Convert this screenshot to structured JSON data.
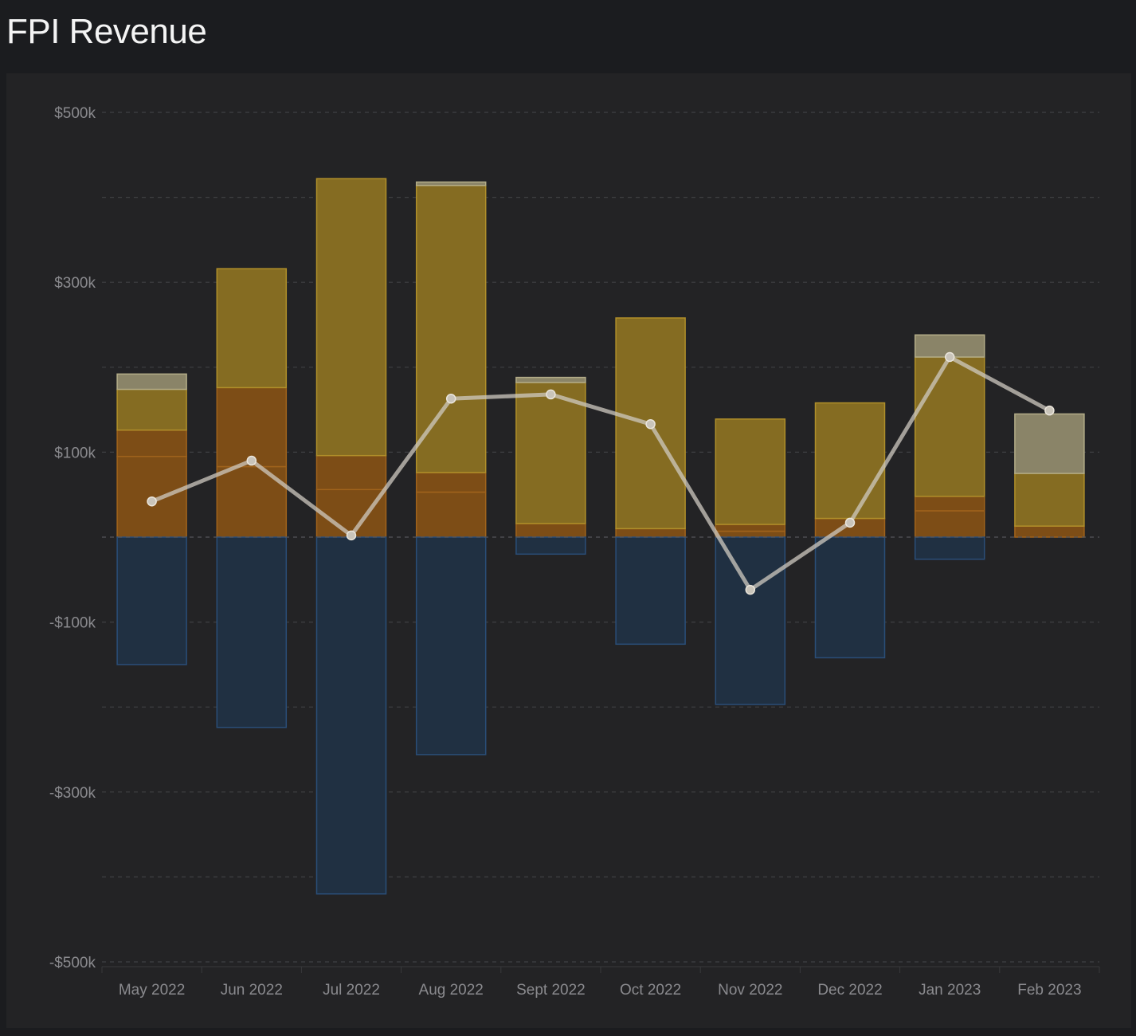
{
  "header": {
    "title": "FPI Revenue"
  },
  "chart_data": {
    "type": "bar",
    "title": "FPI Revenue",
    "categories": [
      "May 2022",
      "Jun 2022",
      "Jul 2022",
      "Aug 2022",
      "Sept 2022",
      "Oct 2022",
      "Nov 2022",
      "Dec 2022",
      "Jan 2023",
      "Feb 2023"
    ],
    "y_ticks": [
      "$500k",
      "$300k",
      "$100k",
      "-$100k",
      "-$300k",
      "-$500k"
    ],
    "ylim": [
      -500000,
      500000
    ],
    "grid": true,
    "series": [
      {
        "kind": "bar",
        "color": "#7d4d16",
        "edge": "#a0631c",
        "values": [
          95000,
          83000,
          56000,
          53000,
          16000,
          10000,
          7000,
          22000,
          31000,
          13000
        ]
      },
      {
        "kind": "bar",
        "color": "#7d4d16",
        "edge": "#a0631c",
        "values": [
          31000,
          93000,
          40000,
          23000,
          0,
          0,
          8000,
          0,
          17000,
          0
        ]
      },
      {
        "kind": "bar",
        "color": "#856c22",
        "edge": "#b08f2a",
        "values": [
          48000,
          140000,
          326000,
          338000,
          166000,
          248000,
          124000,
          136000,
          164000,
          62000
        ]
      },
      {
        "kind": "bar",
        "color": "#8a8468",
        "edge": "#b3ac88",
        "values": [
          18000,
          0,
          0,
          4000,
          6000,
          0,
          0,
          0,
          26000,
          70000
        ]
      },
      {
        "kind": "bar",
        "color": "#203042",
        "edge": "#2a4e78",
        "values": [
          -150000,
          -224000,
          -420000,
          -256000,
          -20000,
          -126000,
          -197000,
          -142000,
          -26000,
          0
        ]
      },
      {
        "kind": "line",
        "color": "#cfcac0",
        "values": [
          42000,
          90000,
          2000,
          163000,
          168000,
          133000,
          -62000,
          17000,
          212000,
          149000
        ]
      }
    ]
  }
}
